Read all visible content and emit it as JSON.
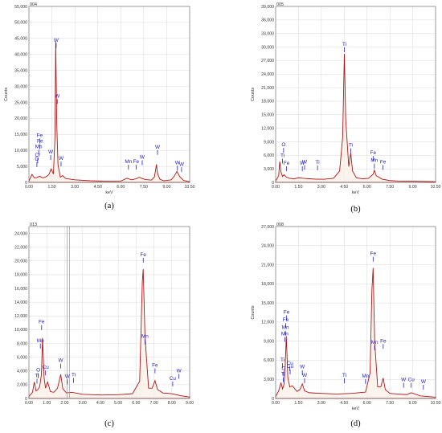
{
  "chart_data": [
    {
      "id": "a",
      "type": "line",
      "spectrum_label": "004",
      "caption": "(a)",
      "xlabel": "keV",
      "ylabel": "Counts",
      "xlim": [
        0,
        10.5
      ],
      "ylim": [
        0,
        55000
      ],
      "grid": true,
      "xticks": [
        0.0,
        1.5,
        3.0,
        4.5,
        6.0,
        7.5,
        9.0,
        10.5
      ],
      "xtick_labels": [
        "0.00",
        "1.50",
        "3.00",
        "4.50",
        "6.00",
        "7.50",
        "9.00",
        "10.50"
      ],
      "yticks": [
        0,
        5000,
        10000,
        15000,
        20000,
        25000,
        30000,
        35000,
        40000,
        45000,
        50000,
        55000
      ],
      "ytick_labels": [
        "0",
        "5,000",
        "10,000",
        "15,000",
        "20,000",
        "25,000",
        "30,000",
        "35,000",
        "40,000",
        "45,000",
        "50,000",
        "55,000"
      ],
      "series": [
        {
          "x": [
            0,
            0.2,
            0.35,
            0.5,
            0.7,
            0.9,
            1.1,
            1.3,
            1.45,
            1.6,
            1.7,
            1.75,
            1.78,
            1.82,
            1.9,
            2.05,
            2.2,
            2.4,
            3.0,
            4.0,
            5.0,
            6.0,
            6.4,
            6.7,
            7.0,
            7.2,
            7.4,
            7.6,
            8.0,
            8.2,
            8.33,
            8.4,
            8.55,
            8.8,
            9.0,
            9.3,
            9.5,
            9.67,
            9.85,
            10.1,
            10.5
          ],
          "y": [
            400,
            2500,
            1400,
            1500,
            1900,
            1400,
            1700,
            2400,
            4200,
            2600,
            14000,
            44000,
            33000,
            18000,
            5500,
            1600,
            2100,
            1200,
            800,
            500,
            350,
            400,
            1300,
            800,
            1100,
            1600,
            1200,
            900,
            700,
            1700,
            5600,
            2800,
            1000,
            500,
            600,
            800,
            2000,
            3400,
            1800,
            600,
            200
          ]
        }
      ],
      "annotations": [
        {
          "label": "W",
          "x": 1.78,
          "y": 44000
        },
        {
          "label": "W",
          "x": 1.85,
          "y": 26500
        },
        {
          "label": "W",
          "x": 1.42,
          "y": 9000
        },
        {
          "label": "W",
          "x": 2.1,
          "y": 7000
        },
        {
          "label": "Fe",
          "x": 0.7,
          "y": 14200
        },
        {
          "label": "Fe",
          "x": 0.72,
          "y": 12400
        },
        {
          "label": "Mn",
          "x": 0.64,
          "y": 10700
        },
        {
          "label": "Cr",
          "x": 0.57,
          "y": 8000
        },
        {
          "label": "O",
          "x": 0.52,
          "y": 6800
        },
        {
          "label": "Mn",
          "x": 6.5,
          "y": 6000
        },
        {
          "label": "Fe",
          "x": 7.0,
          "y": 6000
        },
        {
          "label": "W",
          "x": 7.4,
          "y": 7400
        },
        {
          "label": "W",
          "x": 8.4,
          "y": 10600
        },
        {
          "label": "W",
          "x": 9.7,
          "y": 5700
        },
        {
          "label": "W",
          "x": 9.97,
          "y": 5200
        }
      ]
    },
    {
      "id": "b",
      "type": "line",
      "spectrum_label": "005",
      "caption": "(b)",
      "xlabel": "keV",
      "ylabel": "Counts",
      "xlim": [
        0,
        10.5
      ],
      "ylim": [
        0,
        39000
      ],
      "grid": true,
      "xticks": [
        0.0,
        1.5,
        3.0,
        4.5,
        6.0,
        7.5,
        9.0,
        10.5
      ],
      "xtick_labels": [
        "0.00",
        "1.50",
        "3.00",
        "4.50",
        "6.00",
        "7.50",
        "9.00",
        "10.50"
      ],
      "yticks": [
        0,
        3000,
        6000,
        9000,
        12000,
        15000,
        18000,
        21000,
        24000,
        27000,
        30000,
        33000,
        36000,
        39000
      ],
      "ytick_labels": [
        "0",
        "3,000",
        "6,000",
        "9,000",
        "12,000",
        "15,000",
        "18,000",
        "21,000",
        "24,000",
        "27,000",
        "30,000",
        "33,000",
        "36,000",
        "39,000"
      ],
      "series": [
        {
          "x": [
            0,
            0.2,
            0.27,
            0.35,
            0.45,
            0.55,
            0.7,
            0.9,
            1.2,
            1.5,
            1.8,
            2.2,
            2.7,
            3.2,
            3.8,
            4.2,
            4.4,
            4.51,
            4.6,
            4.8,
            4.93,
            5.05,
            5.3,
            5.7,
            6.1,
            6.4,
            6.48,
            6.6,
            7.0,
            7.5,
            8.0,
            9.0,
            10.5
          ],
          "y": [
            300,
            1500,
            4600,
            2300,
            1300,
            1700,
            1200,
            900,
            800,
            1000,
            900,
            800,
            700,
            700,
            900,
            2500,
            10000,
            28500,
            14000,
            3500,
            6500,
            2500,
            1000,
            800,
            900,
            1800,
            2700,
            1500,
            700,
            400,
            300,
            250,
            150
          ]
        }
      ],
      "annotations": [
        {
          "label": "Ti",
          "x": 4.51,
          "y": 30300
        },
        {
          "label": "Ti",
          "x": 4.93,
          "y": 7900
        },
        {
          "label": "O",
          "x": 0.52,
          "y": 8000
        },
        {
          "label": "Ti",
          "x": 0.45,
          "y": 5600
        },
        {
          "label": "Fe",
          "x": 0.72,
          "y": 3900
        },
        {
          "label": "W",
          "x": 1.75,
          "y": 3900
        },
        {
          "label": "W",
          "x": 1.9,
          "y": 4200
        },
        {
          "label": "Ti",
          "x": 2.75,
          "y": 4100
        },
        {
          "label": "Fe",
          "x": 6.4,
          "y": 6200
        },
        {
          "label": "Mn",
          "x": 6.48,
          "y": 4500
        },
        {
          "label": "Fe",
          "x": 7.05,
          "y": 4200
        }
      ]
    },
    {
      "id": "c",
      "type": "line",
      "spectrum_label": "013",
      "caption": "(c)",
      "xlabel": "",
      "ylabel": "",
      "xlim": [
        0,
        9.0
      ],
      "ylim": [
        0,
        25000
      ],
      "grid": true,
      "xticks": [
        0.0,
        1.0,
        2.0,
        3.0,
        4.0,
        5.0,
        6.0,
        7.0,
        8.0,
        9.0
      ],
      "xtick_labels": [
        "0.00",
        "1.00",
        "2.00",
        "3.00",
        "4.00",
        "5.00",
        "6.00",
        "7.00",
        "8.00",
        "9.00"
      ],
      "yticks": [
        0,
        2000,
        4000,
        6000,
        8000,
        10000,
        12000,
        14000,
        16000,
        18000,
        20000,
        22000,
        24000
      ],
      "ytick_labels": [
        "0",
        "2,000",
        "4,000",
        "6,000",
        "8,000",
        "10,000",
        "12,000",
        "14,000",
        "16,000",
        "18,000",
        "20,000",
        "22,000",
        "24,000"
      ],
      "cursor_x": 2.2,
      "series": [
        {
          "x": [
            0,
            0.2,
            0.3,
            0.4,
            0.5,
            0.6,
            0.7,
            0.76,
            0.85,
            0.93,
            1.05,
            1.2,
            1.4,
            1.6,
            1.78,
            1.9,
            2.1,
            2.4,
            3.0,
            4.0,
            5.0,
            5.8,
            6.2,
            6.35,
            6.4,
            6.5,
            6.7,
            6.9,
            7.06,
            7.2,
            7.5,
            8.0,
            8.5,
            9.0
          ],
          "y": [
            300,
            900,
            2400,
            1100,
            1300,
            1700,
            3500,
            8800,
            3000,
            1500,
            2400,
            1000,
            900,
            1500,
            3500,
            1400,
            800,
            900,
            600,
            500,
            550,
            700,
            2500,
            17000,
            18800,
            9000,
            1500,
            1500,
            2600,
            1300,
            800,
            700,
            400,
            200
          ]
        }
      ],
      "annotations": [
        {
          "label": "Fe",
          "x": 6.4,
          "y": 20700
        },
        {
          "label": "Mn",
          "x": 6.5,
          "y": 8800
        },
        {
          "label": "Fe",
          "x": 7.06,
          "y": 4600
        },
        {
          "label": "Fe",
          "x": 0.71,
          "y": 10900
        },
        {
          "label": "Mn",
          "x": 0.64,
          "y": 8200
        },
        {
          "label": "O",
          "x": 0.52,
          "y": 3900
        },
        {
          "label": "Cu",
          "x": 0.93,
          "y": 4300
        },
        {
          "label": "Ti",
          "x": 0.45,
          "y": 3100
        },
        {
          "label": "W",
          "x": 1.78,
          "y": 5300
        },
        {
          "label": "W",
          "x": 2.15,
          "y": 3000
        },
        {
          "label": "Ti",
          "x": 2.5,
          "y": 3200
        },
        {
          "label": "Cu",
          "x": 8.05,
          "y": 2700
        },
        {
          "label": "W",
          "x": 8.4,
          "y": 3800
        }
      ]
    },
    {
      "id": "d",
      "type": "line",
      "spectrum_label": "008",
      "caption": "(d)",
      "xlabel": "keV",
      "ylabel": "Counts",
      "xlim": [
        0,
        10.5
      ],
      "ylim": [
        0,
        27000
      ],
      "grid": true,
      "xticks": [
        0.0,
        1.5,
        3.0,
        4.5,
        6.0,
        7.5,
        9.0,
        10.5
      ],
      "xtick_labels": [
        "0.00",
        "1.50",
        "3.00",
        "4.50",
        "6.00",
        "7.50",
        "9.00",
        "10.50"
      ],
      "yticks": [
        0,
        3000,
        6000,
        9000,
        12000,
        15000,
        18000,
        21000,
        24000,
        27000
      ],
      "ytick_labels": [
        "0",
        "3,000",
        "6,000",
        "9,000",
        "12,000",
        "15,000",
        "18,000",
        "21,000",
        "24,000",
        "27,000"
      ],
      "series": [
        {
          "x": [
            0,
            0.2,
            0.35,
            0.45,
            0.55,
            0.62,
            0.7,
            0.8,
            0.93,
            1.1,
            1.4,
            1.6,
            1.75,
            1.9,
            2.2,
            3.0,
            4.0,
            5.0,
            5.9,
            6.2,
            6.32,
            6.4,
            6.5,
            6.7,
            6.9,
            7.06,
            7.2,
            7.5,
            8.0,
            8.6,
            8.9,
            9.5,
            10.5
          ],
          "y": [
            300,
            1200,
            2500,
            1500,
            2200,
            4800,
            9800,
            3300,
            1800,
            2000,
            1100,
            1400,
            2300,
            1200,
            900,
            800,
            700,
            800,
            1000,
            4000,
            17000,
            20500,
            9000,
            1800,
            1800,
            3200,
            1400,
            800,
            700,
            600,
            900,
            400,
            200
          ]
        }
      ],
      "annotations": [
        {
          "label": "Fe",
          "x": 6.4,
          "y": 22500
        },
        {
          "label": "Mn",
          "x": 6.5,
          "y": 8600
        },
        {
          "label": "Fe",
          "x": 7.06,
          "y": 8800
        },
        {
          "label": "Fe",
          "x": 0.72,
          "y": 13300
        },
        {
          "label": "Fe",
          "x": 0.66,
          "y": 12100
        },
        {
          "label": "Mn",
          "x": 0.64,
          "y": 10900
        },
        {
          "label": "Mn",
          "x": 0.6,
          "y": 9900
        },
        {
          "label": "Ti",
          "x": 0.45,
          "y": 5800
        },
        {
          "label": "Cu",
          "x": 0.93,
          "y": 5300
        },
        {
          "label": "O",
          "x": 0.52,
          "y": 4500
        },
        {
          "label": "Ti",
          "x": 0.5,
          "y": 3600
        },
        {
          "label": "Cu",
          "x": 0.95,
          "y": 4800
        },
        {
          "label": "W",
          "x": 1.75,
          "y": 4700
        },
        {
          "label": "W",
          "x": 1.9,
          "y": 3400
        },
        {
          "label": "Ti",
          "x": 4.51,
          "y": 3400
        },
        {
          "label": "Mn",
          "x": 5.9,
          "y": 3300
        },
        {
          "label": "W",
          "x": 8.4,
          "y": 2700
        },
        {
          "label": "Cu",
          "x": 8.9,
          "y": 2700
        },
        {
          "label": "W",
          "x": 9.7,
          "y": 2400
        }
      ]
    }
  ]
}
